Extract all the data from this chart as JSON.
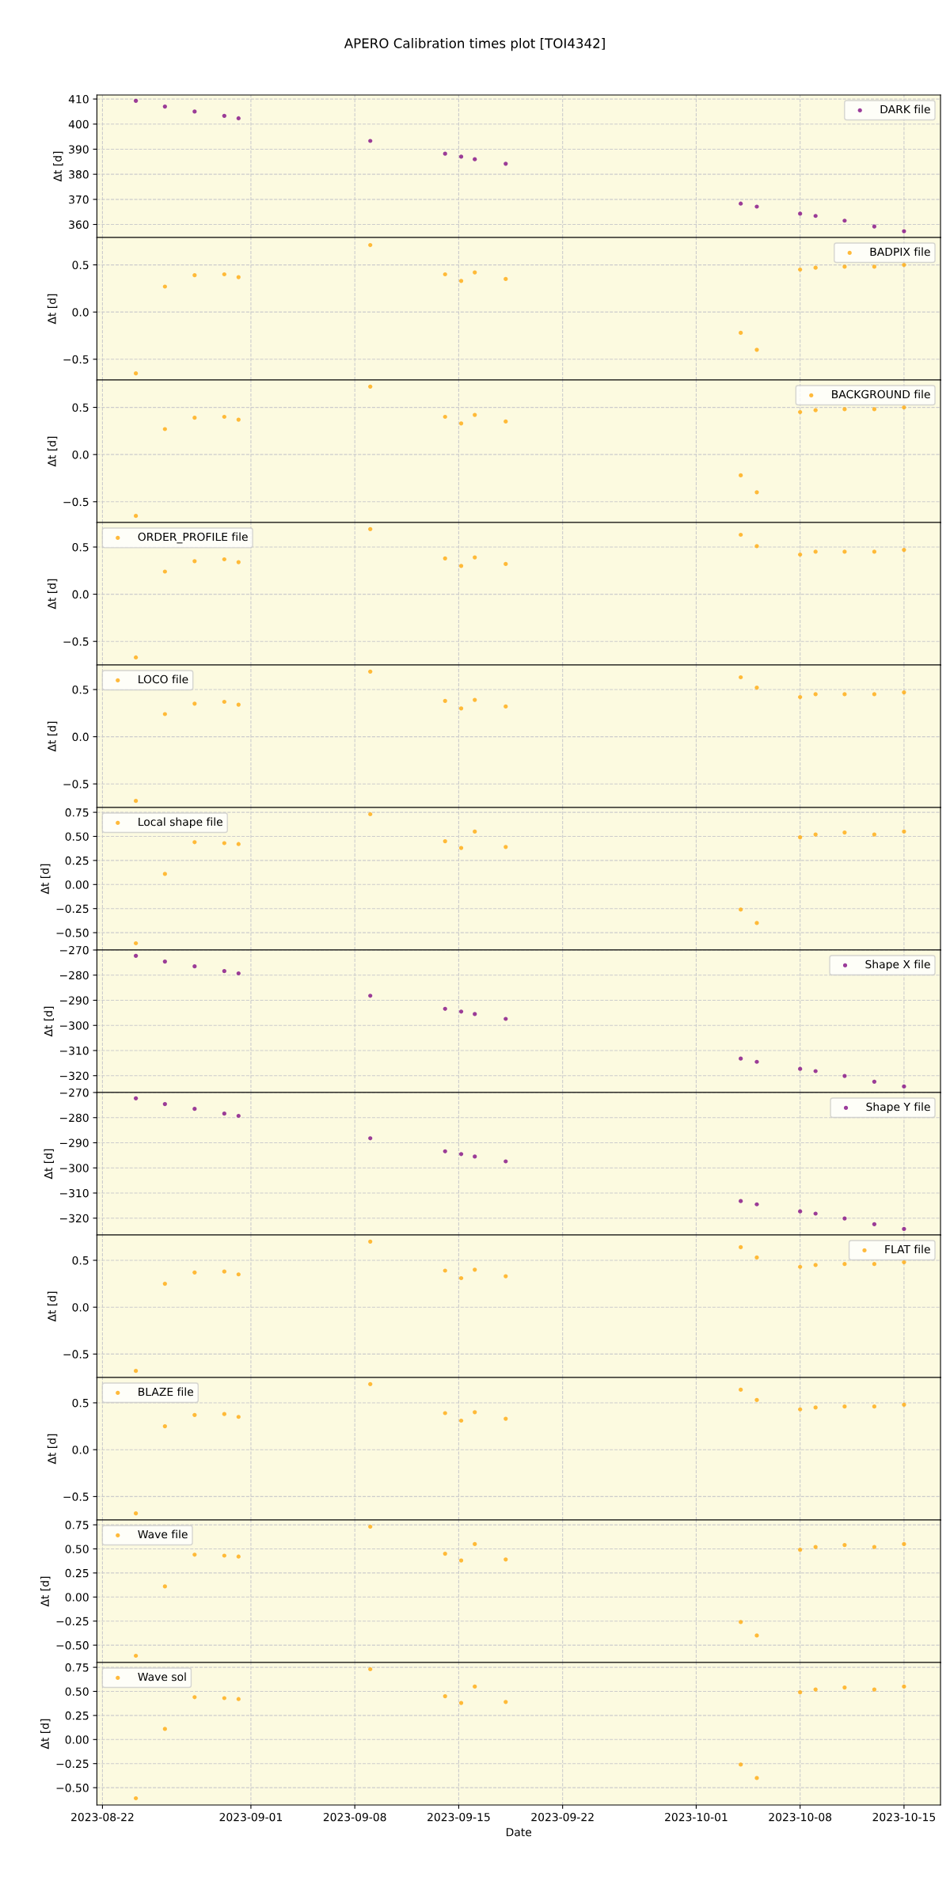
{
  "chart_data": [
    {
      "type": "scatter",
      "title": "APERO Calibration times plot [TOI4342]",
      "ylabel": "Δt [d]",
      "x": [
        "2023-08-24T06:00",
        "2023-08-26T05:00",
        "2023-08-28T05:00",
        "2023-08-30T05:00",
        "2023-08-31T04:00",
        "2023-09-09T01:00",
        "2023-09-14T02:00",
        "2023-09-15T04:00",
        "2023-09-16T02:00",
        "2023-09-18T04:00",
        "2023-10-04T00:00",
        "2023-10-05T02:00",
        "2023-10-08T00:00",
        "2023-10-09T01:00",
        "2023-10-11T00:00",
        "2023-10-13T00:00",
        "2023-10-15T00:00"
      ],
      "series": [
        {
          "name": "DARK file",
          "color": "#8a1a8a",
          "values": [
            409.3,
            407,
            405,
            403.3,
            402.3,
            393.3,
            388.2,
            387,
            386,
            384.2,
            368.3,
            367.1,
            364.3,
            363.4,
            361.5,
            359.2,
            357.3
          ]
        }
      ],
      "xlim": [
        "2023-08-21T15:00",
        "2023-10-17T11:00"
      ],
      "xticks": [
        "2023-08-22",
        "2023-09-01",
        "2023-09-08",
        "2023-09-15",
        "2023-09-22",
        "2023-10-01",
        "2023-10-08",
        "2023-10-15"
      ],
      "ylim": [
        354.8,
        411.6
      ],
      "yticks": [
        360,
        370,
        380,
        390,
        400,
        410
      ],
      "grid": true,
      "legend": "top right",
      "marker": "circle",
      "tick_labels": "y"
    },
    {
      "type": "scatter",
      "ylabel": "Δt [d]",
      "x": [
        "2023-08-24T06:00",
        "2023-08-26T05:00",
        "2023-08-28T05:00",
        "2023-08-30T05:00",
        "2023-08-31T04:00",
        "2023-09-09T01:00",
        "2023-09-14T02:00",
        "2023-09-15T04:00",
        "2023-09-16T02:00",
        "2023-09-18T04:00",
        "2023-10-04T00:00",
        "2023-10-05T02:00",
        "2023-10-08T00:00",
        "2023-10-09T01:00",
        "2023-10-11T00:00",
        "2023-10-13T00:00",
        "2023-10-15T00:00"
      ],
      "series": [
        {
          "name": "BADPIX file",
          "color": "#ffae1a",
          "values": [
            -0.65,
            0.27,
            0.39,
            0.4,
            0.37,
            0.71,
            0.4,
            0.33,
            0.42,
            0.35,
            -0.22,
            -0.4,
            0.45,
            0.47,
            0.48,
            0.48,
            0.5
          ]
        }
      ],
      "xlim": [
        "2023-08-21T15:00",
        "2023-10-17T11:00"
      ],
      "xticks": [
        "2023-08-22",
        "2023-09-01",
        "2023-09-08",
        "2023-09-15",
        "2023-09-22",
        "2023-10-01",
        "2023-10-08",
        "2023-10-15"
      ],
      "ylim": [
        -0.72,
        0.79
      ],
      "yticks": [
        {
          "value": -0.5,
          "label": "−0.5"
        },
        {
          "value": 0,
          "label": "0.0"
        },
        {
          "value": 0.5,
          "label": "0.5"
        }
      ],
      "grid": true,
      "legend": "top right",
      "marker": "circle",
      "tick_labels": "y"
    },
    {
      "type": "scatter",
      "ylabel": "Δt [d]",
      "x": [
        "2023-08-24T06:00",
        "2023-08-26T05:00",
        "2023-08-28T05:00",
        "2023-08-30T05:00",
        "2023-08-31T04:00",
        "2023-09-09T01:00",
        "2023-09-14T02:00",
        "2023-09-15T04:00",
        "2023-09-16T02:00",
        "2023-09-18T04:00",
        "2023-10-04T00:00",
        "2023-10-05T02:00",
        "2023-10-08T00:00",
        "2023-10-09T01:00",
        "2023-10-11T00:00",
        "2023-10-13T00:00",
        "2023-10-15T00:00"
      ],
      "series": [
        {
          "name": "BACKGROUND file",
          "color": "#ffae1a",
          "values": [
            -0.65,
            0.27,
            0.39,
            0.4,
            0.37,
            0.72,
            0.4,
            0.33,
            0.42,
            0.35,
            -0.22,
            -0.4,
            0.45,
            0.47,
            0.48,
            0.48,
            0.5
          ]
        }
      ],
      "xlim": [
        "2023-08-21T15:00",
        "2023-10-17T11:00"
      ],
      "xticks": [
        "2023-08-22",
        "2023-09-01",
        "2023-09-08",
        "2023-09-15",
        "2023-09-22",
        "2023-10-01",
        "2023-10-08",
        "2023-10-15"
      ],
      "ylim": [
        -0.72,
        0.79
      ],
      "yticks": [
        {
          "value": -0.5,
          "label": "−0.5"
        },
        {
          "value": 0,
          "label": "0.0"
        },
        {
          "value": 0.5,
          "label": "0.5"
        }
      ],
      "grid": true,
      "legend": "top right",
      "marker": "circle",
      "tick_labels": "y"
    },
    {
      "type": "scatter",
      "ylabel": "Δt [d]",
      "x": [
        "2023-08-24T06:00",
        "2023-08-26T05:00",
        "2023-08-28T05:00",
        "2023-08-30T05:00",
        "2023-08-31T04:00",
        "2023-09-09T01:00",
        "2023-09-14T02:00",
        "2023-09-15T04:00",
        "2023-09-16T02:00",
        "2023-09-18T04:00",
        "2023-10-04T00:00",
        "2023-10-05T02:00",
        "2023-10-08T00:00",
        "2023-10-09T01:00",
        "2023-10-11T00:00",
        "2023-10-13T00:00",
        "2023-10-15T00:00"
      ],
      "series": [
        {
          "name": "ORDER_PROFILE file",
          "color": "#ffae1a",
          "values": [
            -0.67,
            0.24,
            0.35,
            0.37,
            0.34,
            0.69,
            0.38,
            0.3,
            0.39,
            0.32,
            0.63,
            0.51,
            0.42,
            0.45,
            0.45,
            0.45,
            0.47
          ]
        }
      ],
      "xlim": [
        "2023-08-21T15:00",
        "2023-10-17T11:00"
      ],
      "xticks": [
        "2023-08-22",
        "2023-09-01",
        "2023-09-08",
        "2023-09-15",
        "2023-09-22",
        "2023-10-01",
        "2023-10-08",
        "2023-10-15"
      ],
      "ylim": [
        -0.75,
        0.76
      ],
      "yticks": [
        {
          "value": -0.5,
          "label": "−0.5"
        },
        {
          "value": 0,
          "label": "0.0"
        },
        {
          "value": 0.5,
          "label": "0.5"
        }
      ],
      "grid": true,
      "legend": "top left",
      "marker": "circle",
      "tick_labels": "y"
    },
    {
      "type": "scatter",
      "ylabel": "Δt [d]",
      "x": [
        "2023-08-24T06:00",
        "2023-08-26T05:00",
        "2023-08-28T05:00",
        "2023-08-30T05:00",
        "2023-08-31T04:00",
        "2023-09-09T01:00",
        "2023-09-14T02:00",
        "2023-09-15T04:00",
        "2023-09-16T02:00",
        "2023-09-18T04:00",
        "2023-10-04T00:00",
        "2023-10-05T02:00",
        "2023-10-08T00:00",
        "2023-10-09T01:00",
        "2023-10-11T00:00",
        "2023-10-13T00:00",
        "2023-10-15T00:00"
      ],
      "series": [
        {
          "name": "LOCO file",
          "color": "#ffae1a",
          "values": [
            -0.68,
            0.24,
            0.35,
            0.37,
            0.34,
            0.69,
            0.38,
            0.3,
            0.39,
            0.32,
            0.63,
            0.52,
            0.42,
            0.45,
            0.45,
            0.45,
            0.47
          ]
        }
      ],
      "xlim": [
        "2023-08-21T15:00",
        "2023-10-17T11:00"
      ],
      "xticks": [
        "2023-08-22",
        "2023-09-01",
        "2023-09-08",
        "2023-09-15",
        "2023-09-22",
        "2023-10-01",
        "2023-10-08",
        "2023-10-15"
      ],
      "ylim": [
        -0.75,
        0.76
      ],
      "yticks": [
        {
          "value": -0.5,
          "label": "−0.5"
        },
        {
          "value": 0,
          "label": "0.0"
        },
        {
          "value": 0.5,
          "label": "0.5"
        }
      ],
      "grid": true,
      "legend": "top left",
      "marker": "circle",
      "tick_labels": "y"
    },
    {
      "type": "scatter",
      "ylabel": "Δt [d]",
      "x": [
        "2023-08-24T06:00",
        "2023-08-26T05:00",
        "2023-08-28T05:00",
        "2023-08-30T05:00",
        "2023-08-31T04:00",
        "2023-09-09T01:00",
        "2023-09-14T02:00",
        "2023-09-15T04:00",
        "2023-09-16T02:00",
        "2023-09-18T04:00",
        "2023-10-04T00:00",
        "2023-10-05T02:00",
        "2023-10-08T00:00",
        "2023-10-09T01:00",
        "2023-10-11T00:00",
        "2023-10-13T00:00",
        "2023-10-15T00:00"
      ],
      "series": [
        {
          "name": "Local shape file",
          "color": "#ffae1a",
          "values": [
            -0.61,
            0.11,
            0.44,
            0.43,
            0.42,
            0.73,
            0.45,
            0.38,
            0.55,
            0.39,
            -0.26,
            -0.4,
            0.49,
            0.52,
            0.54,
            0.52,
            0.55
          ]
        }
      ],
      "xlim": [
        "2023-08-21T15:00",
        "2023-10-17T11:00"
      ],
      "xticks": [
        "2023-08-22",
        "2023-09-01",
        "2023-09-08",
        "2023-09-15",
        "2023-09-22",
        "2023-10-01",
        "2023-10-08",
        "2023-10-15"
      ],
      "ylim": [
        -0.68,
        0.8
      ],
      "yticks": [
        {
          "value": -0.5,
          "label": "−0.50"
        },
        {
          "value": -0.25,
          "label": "−0.25"
        },
        {
          "value": 0,
          "label": "0.00"
        },
        {
          "value": 0.25,
          "label": "0.25"
        },
        {
          "value": 0.5,
          "label": "0.50"
        },
        {
          "value": 0.75,
          "label": "0.75"
        }
      ],
      "grid": true,
      "legend": "top left",
      "marker": "circle",
      "tick_labels": "y"
    },
    {
      "type": "scatter",
      "ylabel": "Δt [d]",
      "x": [
        "2023-08-24T06:00",
        "2023-08-26T05:00",
        "2023-08-28T05:00",
        "2023-08-30T05:00",
        "2023-08-31T04:00",
        "2023-09-09T01:00",
        "2023-09-14T02:00",
        "2023-09-15T04:00",
        "2023-09-16T02:00",
        "2023-09-18T04:00",
        "2023-10-04T00:00",
        "2023-10-05T02:00",
        "2023-10-08T00:00",
        "2023-10-09T01:00",
        "2023-10-11T00:00",
        "2023-10-13T00:00",
        "2023-10-15T00:00"
      ],
      "series": [
        {
          "name": "Shape X file",
          "color": "#8a1a8a",
          "values": [
            -272.3,
            -274.6,
            -276.5,
            -278.4,
            -279.3,
            -288.2,
            -293.4,
            -294.5,
            -295.5,
            -297.4,
            -313.2,
            -314.5,
            -317.3,
            -318.2,
            -320.1,
            -322.4,
            -324.3
          ]
        }
      ],
      "xlim": [
        "2023-08-21T15:00",
        "2023-10-17T11:00"
      ],
      "xticks": [
        "2023-08-22",
        "2023-09-01",
        "2023-09-08",
        "2023-09-15",
        "2023-09-22",
        "2023-10-01",
        "2023-10-08",
        "2023-10-15"
      ],
      "ylim": [
        -326.7,
        -270
      ],
      "yticks": [
        {
          "value": -320,
          "label": "−320"
        },
        {
          "value": -310,
          "label": "−310"
        },
        {
          "value": -300,
          "label": "−300"
        },
        {
          "value": -290,
          "label": "−290"
        },
        {
          "value": -280,
          "label": "−280"
        },
        {
          "value": -270,
          "label": "−270"
        }
      ],
      "grid": true,
      "legend": "top right",
      "marker": "circle",
      "tick_labels": "y"
    },
    {
      "type": "scatter",
      "ylabel": "Δt [d]",
      "x": [
        "2023-08-24T06:00",
        "2023-08-26T05:00",
        "2023-08-28T05:00",
        "2023-08-30T05:00",
        "2023-08-31T04:00",
        "2023-09-09T01:00",
        "2023-09-14T02:00",
        "2023-09-15T04:00",
        "2023-09-16T02:00",
        "2023-09-18T04:00",
        "2023-10-04T00:00",
        "2023-10-05T02:00",
        "2023-10-08T00:00",
        "2023-10-09T01:00",
        "2023-10-11T00:00",
        "2023-10-13T00:00",
        "2023-10-15T00:00"
      ],
      "series": [
        {
          "name": "Shape Y file",
          "color": "#8a1a8a",
          "values": [
            -272.3,
            -274.6,
            -276.5,
            -278.4,
            -279.3,
            -288.2,
            -293.4,
            -294.5,
            -295.5,
            -297.4,
            -313.2,
            -314.5,
            -317.3,
            -318.2,
            -320.1,
            -322.4,
            -324.3
          ]
        }
      ],
      "xlim": [
        "2023-08-21T15:00",
        "2023-10-17T11:00"
      ],
      "xticks": [
        "2023-08-22",
        "2023-09-01",
        "2023-09-08",
        "2023-09-15",
        "2023-09-22",
        "2023-10-01",
        "2023-10-08",
        "2023-10-15"
      ],
      "ylim": [
        -326.7,
        -270
      ],
      "yticks": [
        {
          "value": -320,
          "label": "−320"
        },
        {
          "value": -310,
          "label": "−310"
        },
        {
          "value": -300,
          "label": "−300"
        },
        {
          "value": -290,
          "label": "−290"
        },
        {
          "value": -280,
          "label": "−280"
        },
        {
          "value": -270,
          "label": "−270"
        }
      ],
      "grid": true,
      "legend": "top right",
      "marker": "circle",
      "tick_labels": "y"
    },
    {
      "type": "scatter",
      "ylabel": "Δt [d]",
      "x": [
        "2023-08-24T06:00",
        "2023-08-26T05:00",
        "2023-08-28T05:00",
        "2023-08-30T05:00",
        "2023-08-31T04:00",
        "2023-09-09T01:00",
        "2023-09-14T02:00",
        "2023-09-15T04:00",
        "2023-09-16T02:00",
        "2023-09-18T04:00",
        "2023-10-04T00:00",
        "2023-10-05T02:00",
        "2023-10-08T00:00",
        "2023-10-09T01:00",
        "2023-10-11T00:00",
        "2023-10-13T00:00",
        "2023-10-15T00:00"
      ],
      "series": [
        {
          "name": "FLAT file",
          "color": "#ffae1a",
          "values": [
            -0.68,
            0.25,
            0.37,
            0.38,
            0.35,
            0.7,
            0.39,
            0.31,
            0.4,
            0.33,
            0.64,
            0.53,
            0.43,
            0.45,
            0.46,
            0.46,
            0.48
          ]
        }
      ],
      "xlim": [
        "2023-08-21T15:00",
        "2023-10-17T11:00"
      ],
      "xticks": [
        "2023-08-22",
        "2023-09-01",
        "2023-09-08",
        "2023-09-15",
        "2023-09-22",
        "2023-10-01",
        "2023-10-08",
        "2023-10-15"
      ],
      "ylim": [
        -0.75,
        0.77
      ],
      "yticks": [
        {
          "value": -0.5,
          "label": "−0.5"
        },
        {
          "value": 0,
          "label": "0.0"
        },
        {
          "value": 0.5,
          "label": "0.5"
        }
      ],
      "grid": true,
      "legend": "top right",
      "marker": "circle",
      "tick_labels": "y"
    },
    {
      "type": "scatter",
      "ylabel": "Δt [d]",
      "x": [
        "2023-08-24T06:00",
        "2023-08-26T05:00",
        "2023-08-28T05:00",
        "2023-08-30T05:00",
        "2023-08-31T04:00",
        "2023-09-09T01:00",
        "2023-09-14T02:00",
        "2023-09-15T04:00",
        "2023-09-16T02:00",
        "2023-09-18T04:00",
        "2023-10-04T00:00",
        "2023-10-05T02:00",
        "2023-10-08T00:00",
        "2023-10-09T01:00",
        "2023-10-11T00:00",
        "2023-10-13T00:00",
        "2023-10-15T00:00"
      ],
      "series": [
        {
          "name": "BLAZE file",
          "color": "#ffae1a",
          "values": [
            -0.68,
            0.25,
            0.37,
            0.38,
            0.35,
            0.7,
            0.39,
            0.31,
            0.4,
            0.33,
            0.64,
            0.53,
            0.43,
            0.45,
            0.46,
            0.46,
            0.48
          ]
        }
      ],
      "xlim": [
        "2023-08-21T15:00",
        "2023-10-17T11:00"
      ],
      "xticks": [
        "2023-08-22",
        "2023-09-01",
        "2023-09-08",
        "2023-09-15",
        "2023-09-22",
        "2023-10-01",
        "2023-10-08",
        "2023-10-15"
      ],
      "ylim": [
        -0.75,
        0.77
      ],
      "yticks": [
        {
          "value": -0.5,
          "label": "−0.5"
        },
        {
          "value": 0,
          "label": "0.0"
        },
        {
          "value": 0.5,
          "label": "0.5"
        }
      ],
      "grid": true,
      "legend": "top left",
      "marker": "circle",
      "tick_labels": "y"
    },
    {
      "type": "scatter",
      "ylabel": "Δt [d]",
      "x": [
        "2023-08-24T06:00",
        "2023-08-26T05:00",
        "2023-08-28T05:00",
        "2023-08-30T05:00",
        "2023-08-31T04:00",
        "2023-09-09T01:00",
        "2023-09-14T02:00",
        "2023-09-15T04:00",
        "2023-09-16T02:00",
        "2023-09-18T04:00",
        "2023-10-04T00:00",
        "2023-10-05T02:00",
        "2023-10-08T00:00",
        "2023-10-09T01:00",
        "2023-10-11T00:00",
        "2023-10-13T00:00",
        "2023-10-15T00:00"
      ],
      "series": [
        {
          "name": "Wave file",
          "color": "#ffae1a",
          "values": [
            -0.61,
            0.11,
            0.44,
            0.43,
            0.42,
            0.73,
            0.45,
            0.38,
            0.55,
            0.39,
            -0.26,
            -0.4,
            0.49,
            0.52,
            0.54,
            0.52,
            0.55
          ]
        }
      ],
      "xlim": [
        "2023-08-21T15:00",
        "2023-10-17T11:00"
      ],
      "xticks": [
        "2023-08-22",
        "2023-09-01",
        "2023-09-08",
        "2023-09-15",
        "2023-09-22",
        "2023-10-01",
        "2023-10-08",
        "2023-10-15"
      ],
      "ylim": [
        -0.68,
        0.8
      ],
      "yticks": [
        {
          "value": -0.5,
          "label": "−0.50"
        },
        {
          "value": -0.25,
          "label": "−0.25"
        },
        {
          "value": 0,
          "label": "0.00"
        },
        {
          "value": 0.25,
          "label": "0.25"
        },
        {
          "value": 0.5,
          "label": "0.50"
        },
        {
          "value": 0.75,
          "label": "0.75"
        }
      ],
      "grid": true,
      "legend": "top left",
      "marker": "circle",
      "tick_labels": "y"
    },
    {
      "type": "scatter",
      "ylabel": "Δt [d]",
      "xlabel": "Date",
      "x": [
        "2023-08-24T06:00",
        "2023-08-26T05:00",
        "2023-08-28T05:00",
        "2023-08-30T05:00",
        "2023-08-31T04:00",
        "2023-09-09T01:00",
        "2023-09-14T02:00",
        "2023-09-15T04:00",
        "2023-09-16T02:00",
        "2023-09-18T04:00",
        "2023-10-04T00:00",
        "2023-10-05T02:00",
        "2023-10-08T00:00",
        "2023-10-09T01:00",
        "2023-10-11T00:00",
        "2023-10-13T00:00",
        "2023-10-15T00:00"
      ],
      "series": [
        {
          "name": "Wave sol",
          "color": "#ffae1a",
          "values": [
            -0.61,
            0.11,
            0.44,
            0.43,
            0.42,
            0.73,
            0.45,
            0.38,
            0.55,
            0.39,
            -0.26,
            -0.4,
            0.49,
            0.52,
            0.54,
            0.52,
            0.55
          ]
        }
      ],
      "xlim": [
        "2023-08-21T15:00",
        "2023-10-17T11:00"
      ],
      "xticks": [
        "2023-08-22",
        "2023-09-01",
        "2023-09-08",
        "2023-09-15",
        "2023-09-22",
        "2023-10-01",
        "2023-10-08",
        "2023-10-15"
      ],
      "ylim": [
        -0.68,
        0.8
      ],
      "yticks": [
        {
          "value": -0.5,
          "label": "−0.50"
        },
        {
          "value": -0.25,
          "label": "−0.25"
        },
        {
          "value": 0,
          "label": "0.00"
        },
        {
          "value": 0.25,
          "label": "0.25"
        },
        {
          "value": 0.5,
          "label": "0.50"
        },
        {
          "value": 0.75,
          "label": "0.75"
        }
      ],
      "grid": true,
      "legend": "top left",
      "marker": "circle"
    }
  ]
}
